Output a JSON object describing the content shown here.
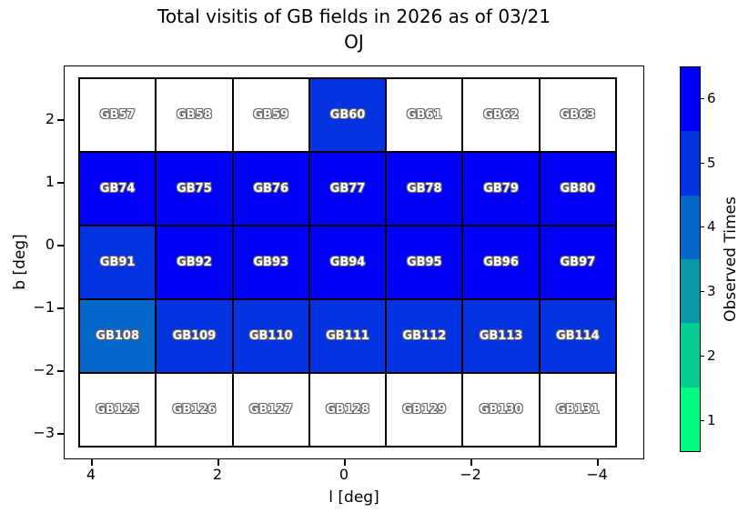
{
  "title": {
    "line1": "Total visitis of GB fields in 2026 as of 03/21",
    "line2": "OJ"
  },
  "axes": {
    "xlabel": "l [deg]",
    "ylabel": "b [deg]",
    "x_ticks": [
      "4",
      "2",
      "0",
      "−2",
      "−4"
    ],
    "y_ticks": [
      "2",
      "1",
      "0",
      "−1",
      "−2",
      "−3"
    ]
  },
  "colorbar": {
    "label": "Observed Times",
    "ticks_top_to_bottom": [
      "6",
      "5",
      "4",
      "3",
      "2",
      "1"
    ],
    "segment_colors_top_to_bottom": [
      "#0101f7",
      "#0533e2",
      "#0766c9",
      "#0899ab",
      "#04cc93",
      "#00fa7f"
    ]
  },
  "chart_data": {
    "type": "heatmap",
    "title": "Total visitis of GB fields in 2026 as of 03/21 OJ",
    "xlabel": "l [deg]",
    "ylabel": "b [deg]",
    "colorbar_label": "Observed Times",
    "x_axis_reversed": true,
    "x_tick_values": [
      4,
      2,
      0,
      -2,
      -4
    ],
    "y_tick_values": [
      2,
      1,
      0,
      -1,
      -2,
      -3
    ],
    "l_centers": [
      3.6,
      2.4,
      1.2,
      0.0,
      -1.2,
      -2.4,
      -3.6
    ],
    "b_centers": [
      2.1,
      0.9,
      -0.3,
      -1.5,
      -2.7
    ],
    "field_size_deg": 1.2,
    "value_range": [
      1,
      6
    ],
    "value_colors": {
      "0": "#ffffff",
      "1": "#00fa7f",
      "2": "#04cc93",
      "3": "#0899ab",
      "4": "#0766c9",
      "5": "#0533e2",
      "6": "#0101f7"
    },
    "rows": [
      {
        "b_center": 2.1,
        "fields": [
          {
            "name": "GB57",
            "visits": 0
          },
          {
            "name": "GB58",
            "visits": 0
          },
          {
            "name": "GB59",
            "visits": 0
          },
          {
            "name": "GB60",
            "visits": 5
          },
          {
            "name": "GB61",
            "visits": 0
          },
          {
            "name": "GB62",
            "visits": 0
          },
          {
            "name": "GB63",
            "visits": 0
          }
        ]
      },
      {
        "b_center": 0.9,
        "fields": [
          {
            "name": "GB74",
            "visits": 6
          },
          {
            "name": "GB75",
            "visits": 6
          },
          {
            "name": "GB76",
            "visits": 6
          },
          {
            "name": "GB77",
            "visits": 6
          },
          {
            "name": "GB78",
            "visits": 6
          },
          {
            "name": "GB79",
            "visits": 6
          },
          {
            "name": "GB80",
            "visits": 6
          }
        ]
      },
      {
        "b_center": -0.3,
        "fields": [
          {
            "name": "GB91",
            "visits": 5
          },
          {
            "name": "GB92",
            "visits": 6
          },
          {
            "name": "GB93",
            "visits": 6
          },
          {
            "name": "GB94",
            "visits": 6
          },
          {
            "name": "GB95",
            "visits": 6
          },
          {
            "name": "GB96",
            "visits": 6
          },
          {
            "name": "GB97",
            "visits": 6
          }
        ]
      },
      {
        "b_center": -1.5,
        "fields": [
          {
            "name": "GB108",
            "visits": 4
          },
          {
            "name": "GB109",
            "visits": 5
          },
          {
            "name": "GB110",
            "visits": 5
          },
          {
            "name": "GB111",
            "visits": 5
          },
          {
            "name": "GB112",
            "visits": 5
          },
          {
            "name": "GB113",
            "visits": 5
          },
          {
            "name": "GB114",
            "visits": 5
          }
        ]
      },
      {
        "b_center": -2.7,
        "fields": [
          {
            "name": "GB125",
            "visits": 0
          },
          {
            "name": "GB126",
            "visits": 0
          },
          {
            "name": "GB127",
            "visits": 0
          },
          {
            "name": "GB128",
            "visits": 0
          },
          {
            "name": "GB129",
            "visits": 0
          },
          {
            "name": "GB130",
            "visits": 0
          },
          {
            "name": "GB131",
            "visits": 0
          }
        ]
      }
    ]
  }
}
